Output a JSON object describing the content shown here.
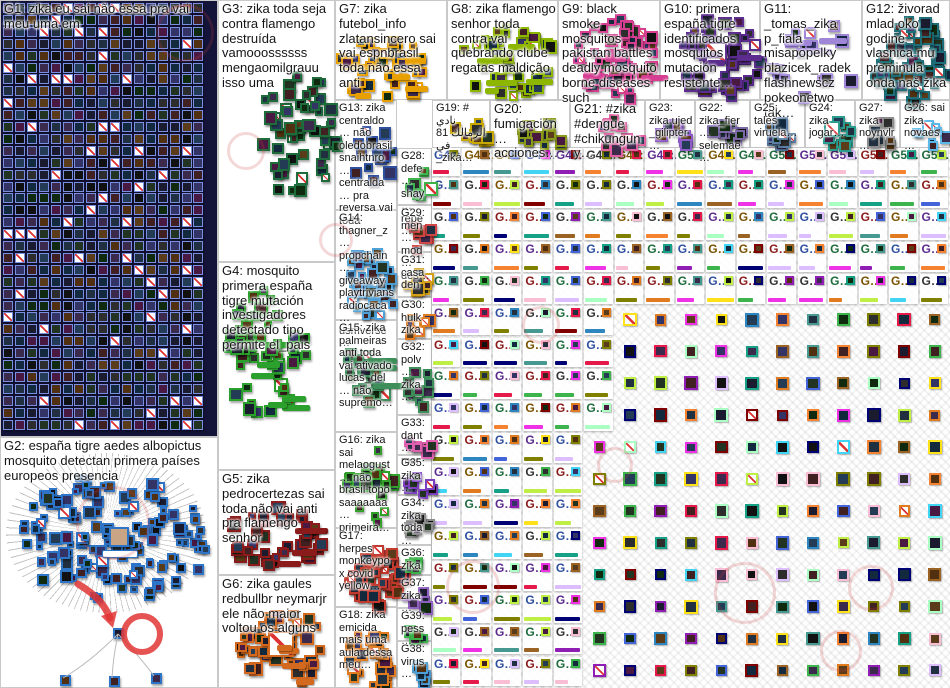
{
  "colors": {
    "canvas_bg": "#ffffff",
    "box_border": "#c9c9c9",
    "g1_background": "#14143a",
    "annotation_red": "#e03535",
    "label_text": "#151515"
  },
  "groups": [
    {
      "id": "G1",
      "label": "G1: zika eu sai não essa pra vai meu uma em",
      "color": "#7b8fe0"
    },
    {
      "id": "G2",
      "label": "G2: españa tigre aedes albopictus mosquito detectan primera países europeos presencia",
      "color": "#2e75c8"
    },
    {
      "id": "G3",
      "label": "G3: zika toda seja contra flamengo destruída vamooossssss mengaomilgrauu isso uma",
      "color": "#1e6b3c"
    },
    {
      "id": "G4",
      "label": "G4: mosquito primera españa tigre mutación investigadores detectado tipo permite el_pais",
      "color": "#2ca02c"
    },
    {
      "id": "G5",
      "label": "G5: zika pedrocertezas sai toda não vai anti pra flamengo senhor",
      "color": "#8b1a1a"
    },
    {
      "id": "G6",
      "label": "G6: zika gaules redbullbr neymarjr ele não maior voltou os alguns",
      "color": "#d2691e"
    },
    {
      "id": "G7",
      "label": "G7: zika futebol_info zlatansincero sai vai espnbrasil toda não essa anti",
      "color": "#e8a000"
    },
    {
      "id": "G8",
      "label": "G8: zika flamengo senhor toda contra vai quebrando clube regatas maldição",
      "color": "#8db600"
    },
    {
      "id": "G9",
      "label": "G9: black smoke mosquitos pakistan battles deadly mosquito borne diseases such",
      "color": "#d63e92"
    },
    {
      "id": "G10",
      "label": "G10: primera españa tigre identificados mosquitos mutación resistente…",
      "color": "#5b2c8d"
    },
    {
      "id": "G11",
      "label": "G11: _tomas_zika p_fiala misapopelky blazicek_radek flashnewscz pokeonetwo tak…",
      "color": "#9f86d8"
    },
    {
      "id": "G12",
      "label": "G12: živorad mlad oko godine vlasnica mu preminula onda naš žika",
      "color": "#1d6e78"
    },
    {
      "id": "G13",
      "label": "G13: zika centraldo… não oledobrasil snaihtnro… centralda… pra reversa vai toda",
      "color": "#2f4f9f"
    },
    {
      "id": "G14",
      "label": "G14: thagner_z… propchain… giveaway playtrivians radiocaca… usmverse…",
      "color": "#4d9fd6"
    },
    {
      "id": "G15",
      "label": "G15: zika palmeiras anti toda vai ativado lucas_del… não supremo…",
      "color": "#3e8e5a"
    },
    {
      "id": "G16",
      "label": "G16: zika sai melaogust… não brasil topo saaaaaaa… primeira…",
      "color": "#33a02c"
    },
    {
      "id": "G17",
      "label": "G17: herpes monkeypox covid yellow…",
      "color": "#c23b2e"
    },
    {
      "id": "G18",
      "label": "G18: zika emicida mais uma aula dessa meu…",
      "color": "#e07b20"
    },
    {
      "id": "G19",
      "label": "G19: # نادي الزمالك 81 في _zika…",
      "color": "#c8a800"
    },
    {
      "id": "G20",
      "label": "G20: fumigación… acciones…",
      "color": "#8a9a1b"
    },
    {
      "id": "G21",
      "label": "G21: #zika #dengue #chikunguny…",
      "color": "#e05fa0"
    },
    {
      "id": "G23",
      "label": "G23: zika ujed _gilipter…",
      "color": "#8e5bc8"
    },
    {
      "id": "G22",
      "label": "G22: zika_fier… selemae…",
      "color": "#7b68a6"
    },
    {
      "id": "G25",
      "label": "G25: tales viruela…",
      "color": "#5b7fa6"
    },
    {
      "id": "G24",
      "label": "G24: zika jogar…",
      "color": "#2a9d8f"
    },
    {
      "id": "G27",
      "label": "G27: zika noynvlr…",
      "color": "#8c8c8c"
    },
    {
      "id": "G26",
      "label": "G26: sai zika novaes…",
      "color": "#5bb8e8"
    },
    {
      "id": "G28",
      "label": "G28: defe… shay… repe…",
      "color": "#3cb44b"
    },
    {
      "id": "G29",
      "label": "G29: men… mod… des…",
      "color": "#d04545"
    },
    {
      "id": "G31",
      "label": "G31: casa den…",
      "color": "#d4a017"
    },
    {
      "id": "G30",
      "label": "G30: hulk zika…",
      "color": "#e07b20"
    },
    {
      "id": "G32",
      "label": "G32: polv… zika…",
      "color": "#3e8e5a"
    },
    {
      "id": "G33",
      "label": "G33: dant… mor…",
      "color": "#e060b0"
    },
    {
      "id": "G35",
      "label": "G35: zika…",
      "color": "#7b3fbf"
    },
    {
      "id": "G34",
      "label": "G34: zika toda…",
      "color": "#8c8c8c"
    },
    {
      "id": "G36",
      "label": "G36: zika…",
      "color": "#3cb44b"
    },
    {
      "id": "G37",
      "label": "G37: zika…",
      "color": "#9060c0"
    },
    {
      "id": "G39",
      "label": "G39: pess…",
      "color": "#3cb44b"
    },
    {
      "id": "G38",
      "label": "G38: virus…",
      "color": "#4d9fd6"
    }
  ],
  "grid": {
    "cell_label": "G…",
    "first_row_labels": [
      "G40:…",
      "G42:…",
      "G41:…",
      "G45:…",
      "G44:…",
      "G43:…",
      "G47:…",
      "G46:…",
      "G5…",
      "G4…",
      "G4…",
      "G5…",
      "G5…",
      "G5…",
      "G5…",
      "G5…",
      "G5…"
    ],
    "rows": 16,
    "cols": 17
  }
}
